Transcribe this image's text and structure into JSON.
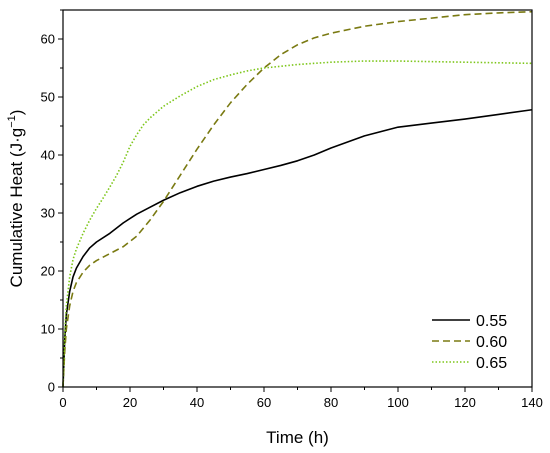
{
  "chart_data": {
    "type": "line",
    "xlabel": "Time (h)",
    "ylabel_main": "Cumulative Heat (J·g",
    "ylabel_sup": "−1",
    "ylabel_close": ")",
    "xlim": [
      0,
      140
    ],
    "ylim": [
      0,
      65
    ],
    "xticks": [
      0,
      20,
      40,
      60,
      80,
      100,
      120,
      140
    ],
    "yticks": [
      0,
      10,
      20,
      30,
      40,
      50,
      60
    ],
    "grid": false,
    "legend_position": "bottom-right",
    "series": [
      {
        "name": "0.55",
        "color": "#000000",
        "dash": "solid",
        "x": [
          0,
          0.5,
          1,
          2,
          3,
          4,
          6,
          8,
          10,
          14,
          18,
          22,
          26,
          30,
          35,
          40,
          45,
          50,
          55,
          60,
          65,
          70,
          75,
          80,
          90,
          100,
          110,
          120,
          130,
          140
        ],
        "y": [
          0,
          8,
          12.5,
          16.5,
          19,
          20.5,
          22.5,
          24,
          25,
          26.5,
          28.3,
          29.8,
          31,
          32.2,
          33.5,
          34.6,
          35.5,
          36.2,
          36.8,
          37.5,
          38.2,
          39,
          40,
          41.2,
          43.3,
          44.8,
          45.5,
          46.2,
          47,
          47.8
        ]
      },
      {
        "name": "0.60",
        "color": "#7a7a12",
        "dash": "dashed",
        "x": [
          0,
          0.5,
          1,
          2,
          3,
          4,
          6,
          8,
          10,
          14,
          18,
          22,
          26,
          30,
          35,
          40,
          45,
          50,
          55,
          60,
          65,
          70,
          75,
          80,
          90,
          100,
          110,
          120,
          130,
          140
        ],
        "y": [
          0,
          6,
          10,
          14,
          16.5,
          18,
          19.8,
          21,
          21.8,
          23,
          24.2,
          26,
          28.8,
          32,
          36.5,
          41,
          45.2,
          49,
          52.2,
          55,
          57.3,
          59,
          60.2,
          61,
          62.2,
          63,
          63.6,
          64.2,
          64.5,
          64.7
        ]
      },
      {
        "name": "0.65",
        "color": "#7dc61a",
        "dash": "dotted",
        "x": [
          0,
          0.5,
          1,
          2,
          3,
          4,
          6,
          8,
          10,
          12,
          14,
          16,
          18,
          20,
          22,
          24,
          26,
          28,
          30,
          35,
          40,
          45,
          50,
          55,
          60,
          70,
          80,
          90,
          100,
          110,
          120,
          130,
          140
        ],
        "y": [
          0,
          9,
          14,
          19,
          22,
          23.8,
          26.5,
          28.8,
          30.8,
          32.6,
          34.5,
          36.5,
          38.8,
          41.5,
          43.5,
          45.2,
          46.4,
          47.4,
          48.4,
          50.2,
          51.8,
          53,
          53.8,
          54.5,
          55,
          55.6,
          56,
          56.2,
          56.2,
          56.1,
          56,
          55.9,
          55.8
        ]
      }
    ]
  }
}
